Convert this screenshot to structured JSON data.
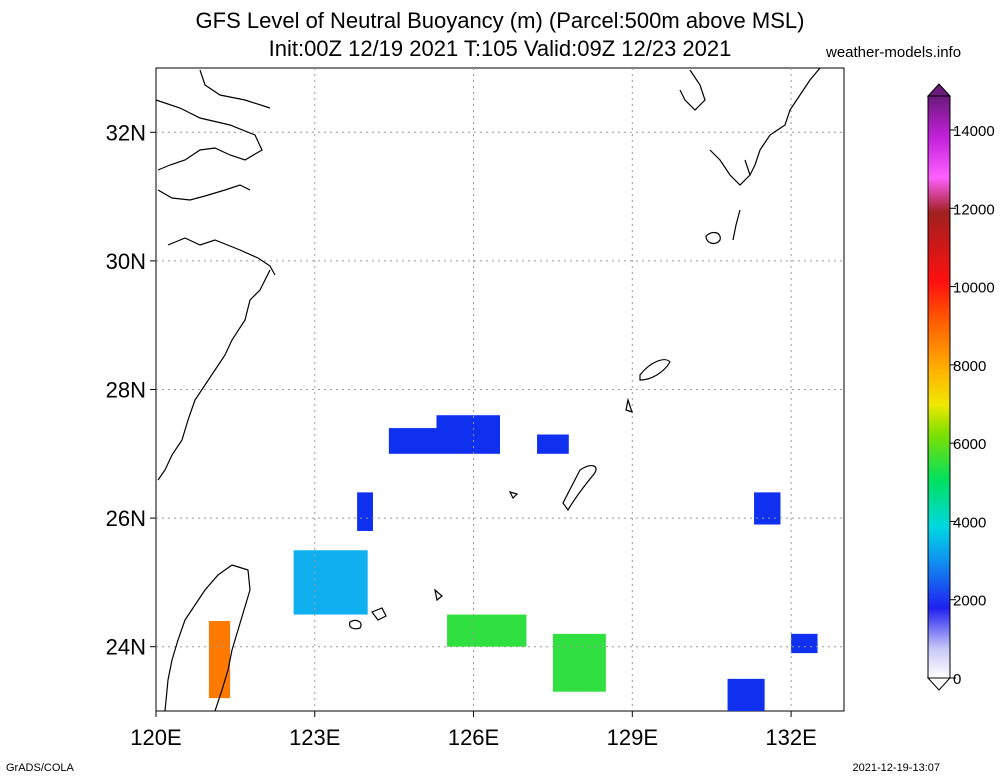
{
  "header": {
    "title_line1": "GFS Level of Neutral Buoyancy (m) (Parcel:500m above MSL)",
    "title_line2": "Init:00Z 12/19 2021 T:105 Valid:09Z 12/23 2021",
    "site": "weather-models.info"
  },
  "footer": {
    "left": "GrADS/COLA",
    "right": "2021-12-19-13:07"
  },
  "map": {
    "lat_labels": [
      "32N",
      "30N",
      "28N",
      "26N",
      "24N"
    ],
    "lon_labels": [
      "120E",
      "123E",
      "126E",
      "129E",
      "132E"
    ],
    "lat_values": [
      32,
      30,
      28,
      26,
      24
    ],
    "lon_values": [
      120,
      123,
      126,
      129,
      132
    ],
    "extent": {
      "lon_min": 120,
      "lon_max": 133,
      "lat_min": 23,
      "lat_max": 33
    }
  },
  "colorbar": {
    "labels": [
      "14000",
      "12000",
      "10000",
      "8000",
      "6000",
      "4000",
      "2000",
      "0"
    ],
    "colors": [
      "#7a2a8a",
      "#a020c8",
      "#e830e8",
      "#ff60ff",
      "#a02020",
      "#c83030",
      "#ff1010",
      "#ff5020",
      "#ff8c00",
      "#ffb000",
      "#ffd800",
      "#e8e800",
      "#a0e000",
      "#40c840",
      "#20e040",
      "#00d890",
      "#00e0d0",
      "#20c0f0",
      "#3090f0",
      "#1050f0",
      "#0a0af0",
      "#4040f0",
      "#8080f0",
      "#b0b0f0",
      "#d8d8f8"
    ]
  },
  "fields": {
    "patches": [
      {
        "lon": [
          124.4,
          125.3
        ],
        "lat": [
          27.4,
          27.0
        ],
        "level": 2000
      },
      {
        "lon": [
          125.3,
          126.5
        ],
        "lat": [
          27.6,
          27.0
        ],
        "level": 2000
      },
      {
        "lon": [
          127.2,
          127.8
        ],
        "lat": [
          27.3,
          27.0
        ],
        "level": 2000
      },
      {
        "lon": [
          122.6,
          124.0
        ],
        "lat": [
          25.5,
          24.5
        ],
        "level": 3000
      },
      {
        "lon": [
          123.8,
          124.1
        ],
        "lat": [
          26.4,
          25.8
        ],
        "level": 2000
      },
      {
        "lon": [
          125.5,
          127.0
        ],
        "lat": [
          24.5,
          24.0
        ],
        "level": 5000
      },
      {
        "lon": [
          127.5,
          128.5
        ],
        "lat": [
          24.2,
          23.3
        ],
        "level": 5000
      },
      {
        "lon": [
          121.0,
          121.4
        ],
        "lat": [
          24.4,
          23.2
        ],
        "level": 8000
      },
      {
        "lon": [
          131.3,
          131.8
        ],
        "lat": [
          26.4,
          25.9
        ],
        "level": 2000
      },
      {
        "lon": [
          132.0,
          132.5
        ],
        "lat": [
          24.2,
          23.9
        ],
        "level": 2000
      },
      {
        "lon": [
          130.8,
          131.5
        ],
        "lat": [
          23.5,
          23.0
        ],
        "level": 2000
      }
    ]
  }
}
